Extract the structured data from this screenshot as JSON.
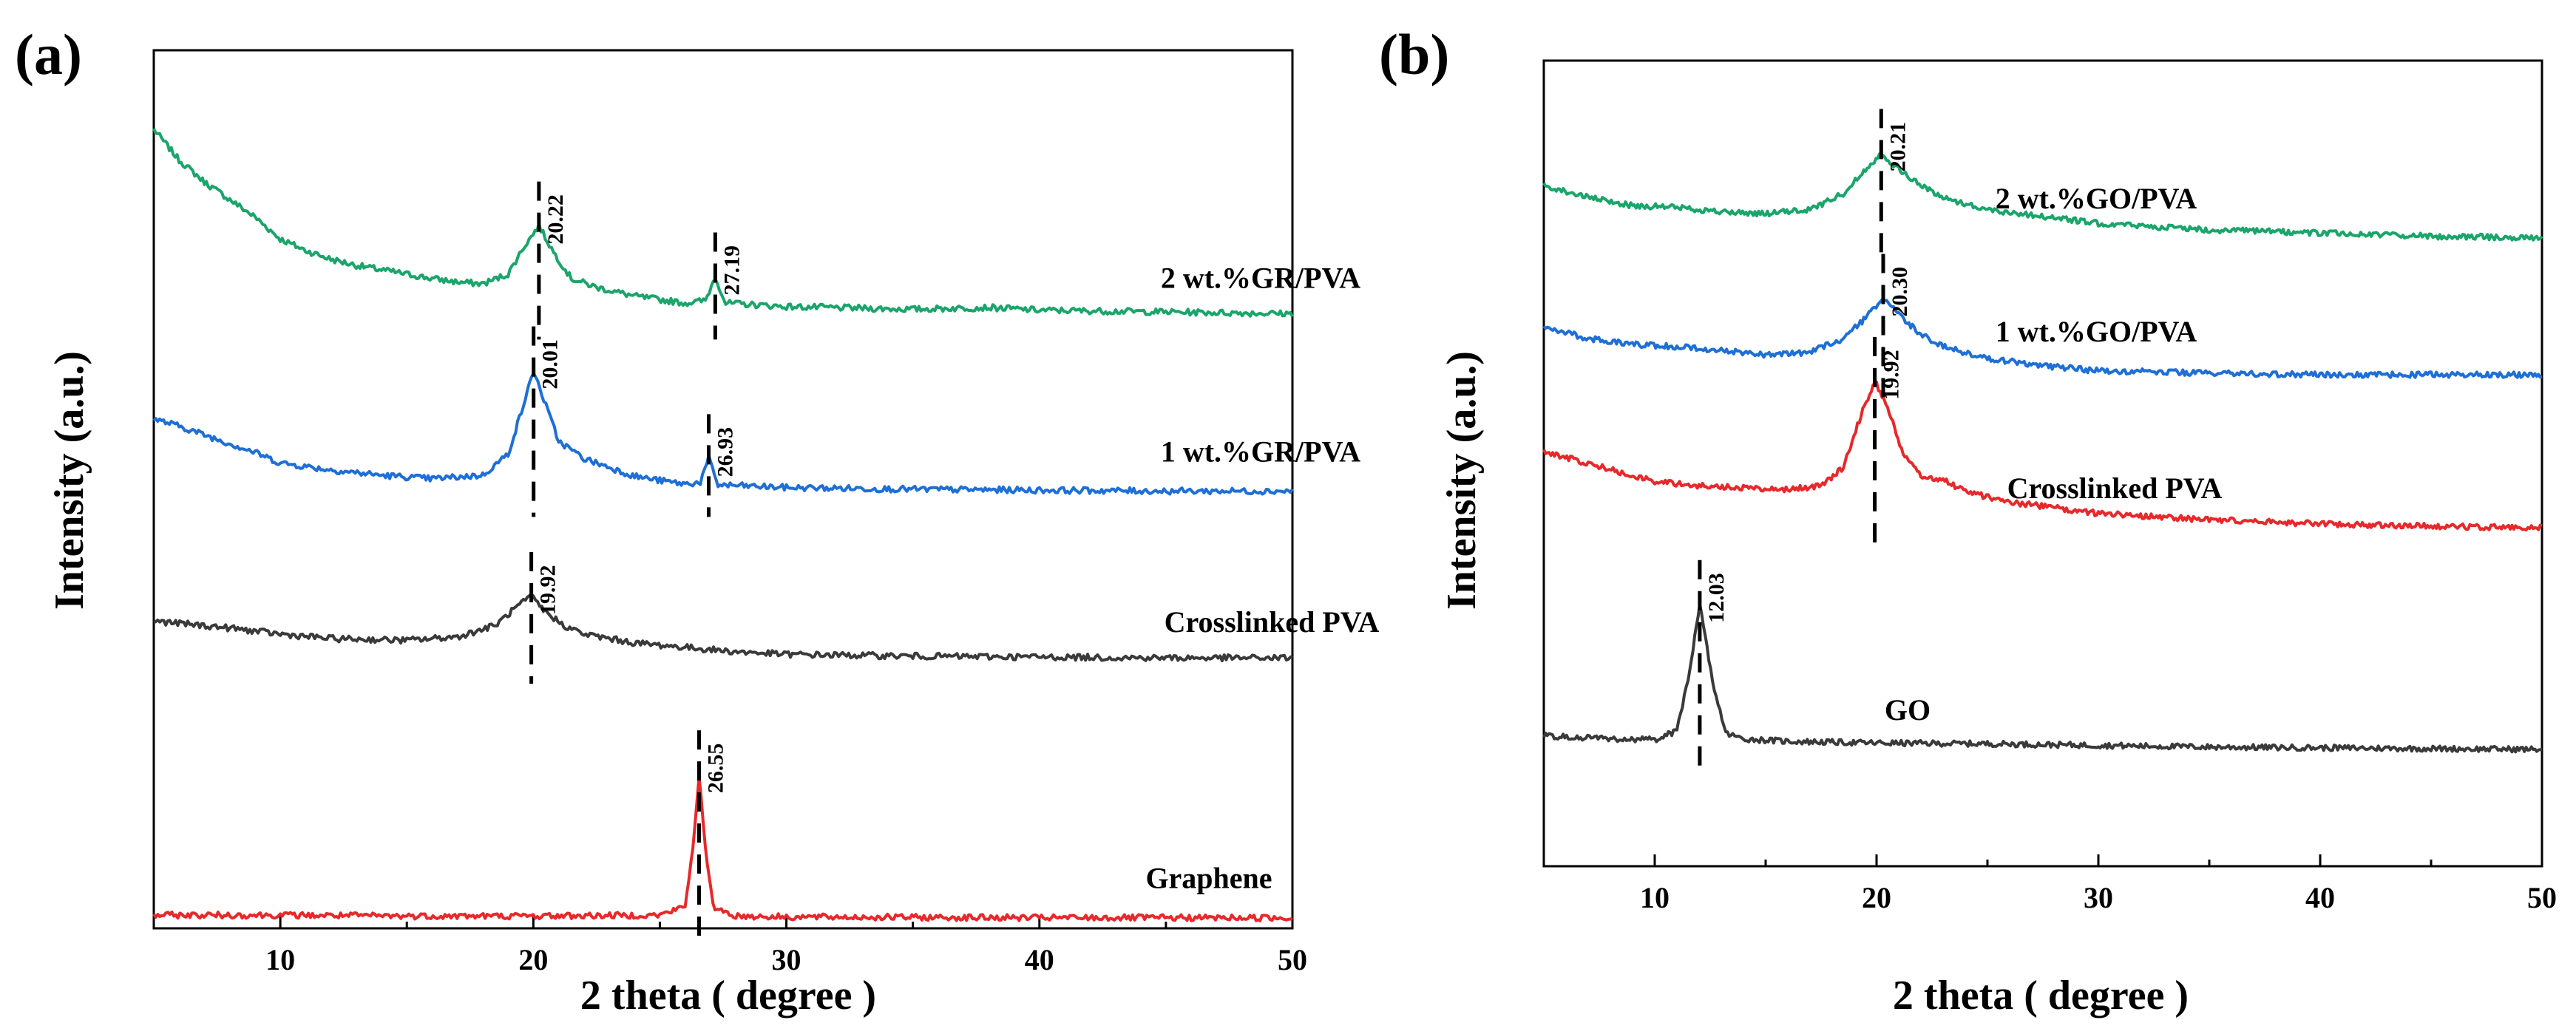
{
  "chart_data": [
    {
      "type": "line",
      "panel_label": "(a)",
      "xlabel": "2 theta ( degree )",
      "ylabel": "Intensity (a.u.)",
      "xlim": [
        5,
        50
      ],
      "xticks": [
        10,
        20,
        30,
        40,
        50
      ],
      "ylim": [
        0,
        10
      ],
      "y_ticks_labeled": false,
      "series": [
        {
          "name": "2 wt.%GR/PVA",
          "color": "#1aa56a",
          "baseline": 7.0,
          "points": [
            [
              5,
              9.1
            ],
            [
              6,
              8.75
            ],
            [
              7,
              8.5
            ],
            [
              8,
              8.3
            ],
            [
              9,
              8.1
            ],
            [
              10,
              7.85
            ],
            [
              11,
              7.72
            ],
            [
              12,
              7.62
            ],
            [
              13,
              7.55
            ],
            [
              14,
              7.5
            ],
            [
              15,
              7.45
            ],
            [
              16,
              7.4
            ],
            [
              17,
              7.36
            ],
            [
              18,
              7.34
            ],
            [
              19,
              7.45
            ],
            [
              19.6,
              7.75
            ],
            [
              20.22,
              8.0
            ],
            [
              20.8,
              7.7
            ],
            [
              21.5,
              7.4
            ],
            [
              22.5,
              7.3
            ],
            [
              24,
              7.2
            ],
            [
              26,
              7.12
            ],
            [
              26.8,
              7.15
            ],
            [
              27.19,
              7.42
            ],
            [
              27.6,
              7.12
            ],
            [
              30,
              7.08
            ],
            [
              35,
              7.05
            ],
            [
              38,
              7.07
            ],
            [
              40,
              7.04
            ],
            [
              45,
              7.02
            ],
            [
              50,
              7.0
            ]
          ],
          "peaks": [
            {
              "x": 20.22,
              "label": "20.22"
            },
            {
              "x": 27.19,
              "label": "27.19"
            }
          ]
        },
        {
          "name": "1 wt.%GR/PVA",
          "color": "#1e6fd6",
          "baseline": 4.98,
          "points": [
            [
              5,
              5.8
            ],
            [
              6,
              5.72
            ],
            [
              7,
              5.62
            ],
            [
              8,
              5.52
            ],
            [
              9,
              5.42
            ],
            [
              10,
              5.3
            ],
            [
              12,
              5.22
            ],
            [
              14,
              5.16
            ],
            [
              16,
              5.12
            ],
            [
              18,
              5.16
            ],
            [
              19,
              5.4
            ],
            [
              19.6,
              5.95
            ],
            [
              20.01,
              6.35
            ],
            [
              20.5,
              5.95
            ],
            [
              21,
              5.55
            ],
            [
              22,
              5.35
            ],
            [
              23,
              5.25
            ],
            [
              24,
              5.15
            ],
            [
              25,
              5.1
            ],
            [
              26,
              5.06
            ],
            [
              26.6,
              5.08
            ],
            [
              26.93,
              5.35
            ],
            [
              27.3,
              5.05
            ],
            [
              30,
              5.02
            ],
            [
              35,
              5.0
            ],
            [
              40,
              4.99
            ],
            [
              45,
              4.98
            ],
            [
              50,
              4.98
            ]
          ],
          "peaks": [
            {
              "x": 20.01,
              "label": "20.01"
            },
            {
              "x": 26.93,
              "label": "26.93"
            }
          ]
        },
        {
          "name": "Crosslinked PVA",
          "color": "#3a3a3a",
          "baseline": 3.08,
          "points": [
            [
              5,
              3.5
            ],
            [
              8,
              3.42
            ],
            [
              10,
              3.35
            ],
            [
              12,
              3.3
            ],
            [
              15,
              3.28
            ],
            [
              17,
              3.32
            ],
            [
              18.5,
              3.45
            ],
            [
              19.3,
              3.65
            ],
            [
              19.92,
              3.78
            ],
            [
              20.5,
              3.6
            ],
            [
              21.2,
              3.45
            ],
            [
              22,
              3.35
            ],
            [
              24,
              3.25
            ],
            [
              26,
              3.2
            ],
            [
              28,
              3.15
            ],
            [
              30,
              3.12
            ],
            [
              35,
              3.1
            ],
            [
              40,
              3.09
            ],
            [
              45,
              3.08
            ],
            [
              50,
              3.08
            ]
          ],
          "peaks": [
            {
              "x": 19.92,
              "label": "19.92"
            }
          ]
        },
        {
          "name": "Graphene",
          "color": "#e8282a",
          "baseline": 0.12,
          "points": [
            [
              5,
              0.15
            ],
            [
              10,
              0.15
            ],
            [
              15,
              0.14
            ],
            [
              20,
              0.14
            ],
            [
              25,
              0.15
            ],
            [
              26,
              0.25
            ],
            [
              26.3,
              0.9
            ],
            [
              26.55,
              1.75
            ],
            [
              26.8,
              0.9
            ],
            [
              27.1,
              0.25
            ],
            [
              28,
              0.14
            ],
            [
              30,
              0.13
            ],
            [
              40,
              0.12
            ],
            [
              50,
              0.12
            ]
          ],
          "peaks": [
            {
              "x": 26.55,
              "label": "26.55"
            }
          ]
        }
      ]
    },
    {
      "type": "line",
      "panel_label": "(b)",
      "xlabel": "2 theta ( degree )",
      "ylabel": "Intensity (a.u.)",
      "xlim": [
        5,
        50
      ],
      "xticks": [
        10,
        20,
        30,
        40,
        50
      ],
      "ylim": [
        0,
        10
      ],
      "y_ticks_labeled": false,
      "series": [
        {
          "name": "2 wt.%GO/PVA",
          "color": "#1aa56a",
          "baseline": 7.8,
          "points": [
            [
              5,
              8.45
            ],
            [
              7,
              8.3
            ],
            [
              9,
              8.2
            ],
            [
              11,
              8.18
            ],
            [
              13,
              8.12
            ],
            [
              15,
              8.1
            ],
            [
              17,
              8.15
            ],
            [
              18.5,
              8.35
            ],
            [
              19.5,
              8.65
            ],
            [
              20.21,
              8.85
            ],
            [
              21,
              8.65
            ],
            [
              22,
              8.45
            ],
            [
              23,
              8.3
            ],
            [
              25,
              8.15
            ],
            [
              28,
              8.05
            ],
            [
              30,
              7.98
            ],
            [
              35,
              7.9
            ],
            [
              40,
              7.86
            ],
            [
              45,
              7.82
            ],
            [
              50,
              7.8
            ]
          ],
          "peaks": [
            {
              "x": 20.21,
              "label": "20.21"
            }
          ]
        },
        {
          "name": "1 wt.%GO/PVA",
          "color": "#1e6fd6",
          "baseline": 6.1,
          "points": [
            [
              5,
              6.7
            ],
            [
              7,
              6.55
            ],
            [
              9,
              6.48
            ],
            [
              11,
              6.45
            ],
            [
              13,
              6.4
            ],
            [
              15,
              6.35
            ],
            [
              17,
              6.38
            ],
            [
              18.5,
              6.55
            ],
            [
              19.5,
              6.8
            ],
            [
              20.3,
              7.05
            ],
            [
              21,
              6.85
            ],
            [
              22,
              6.6
            ],
            [
              23,
              6.45
            ],
            [
              25,
              6.3
            ],
            [
              28,
              6.2
            ],
            [
              30,
              6.15
            ],
            [
              35,
              6.12
            ],
            [
              40,
              6.1
            ],
            [
              45,
              6.1
            ],
            [
              50,
              6.1
            ]
          ],
          "peaks": [
            {
              "x": 20.3,
              "label": "20.30"
            }
          ]
        },
        {
          "name": "Crosslinked PVA",
          "color": "#e8282a",
          "baseline": 4.2,
          "points": [
            [
              5,
              5.15
            ],
            [
              7,
              5.0
            ],
            [
              9,
              4.85
            ],
            [
              10,
              4.78
            ],
            [
              12,
              4.72
            ],
            [
              14,
              4.7
            ],
            [
              16,
              4.68
            ],
            [
              17.5,
              4.72
            ],
            [
              18.5,
              4.95
            ],
            [
              19.3,
              5.6
            ],
            [
              19.92,
              6.02
            ],
            [
              20.5,
              5.7
            ],
            [
              21.2,
              5.1
            ],
            [
              22,
              4.85
            ],
            [
              23,
              4.8
            ],
            [
              24,
              4.65
            ],
            [
              26,
              4.52
            ],
            [
              28,
              4.45
            ],
            [
              30,
              4.38
            ],
            [
              35,
              4.3
            ],
            [
              40,
              4.25
            ],
            [
              45,
              4.22
            ],
            [
              50,
              4.2
            ]
          ],
          "peaks": [
            {
              "x": 19.92,
              "label": "19.92"
            }
          ]
        },
        {
          "name": "GO",
          "color": "#3a3a3a",
          "baseline": 1.45,
          "points": [
            [
              5,
              1.62
            ],
            [
              8,
              1.58
            ],
            [
              10,
              1.57
            ],
            [
              11,
              1.68
            ],
            [
              11.5,
              2.3
            ],
            [
              12.03,
              3.25
            ],
            [
              12.6,
              2.3
            ],
            [
              13.2,
              1.65
            ],
            [
              14,
              1.58
            ],
            [
              16,
              1.55
            ],
            [
              20,
              1.53
            ],
            [
              25,
              1.52
            ],
            [
              30,
              1.5
            ],
            [
              35,
              1.48
            ],
            [
              40,
              1.47
            ],
            [
              45,
              1.46
            ],
            [
              50,
              1.45
            ]
          ],
          "peaks": [
            {
              "x": 12.03,
              "label": "12.03"
            }
          ]
        }
      ]
    }
  ]
}
